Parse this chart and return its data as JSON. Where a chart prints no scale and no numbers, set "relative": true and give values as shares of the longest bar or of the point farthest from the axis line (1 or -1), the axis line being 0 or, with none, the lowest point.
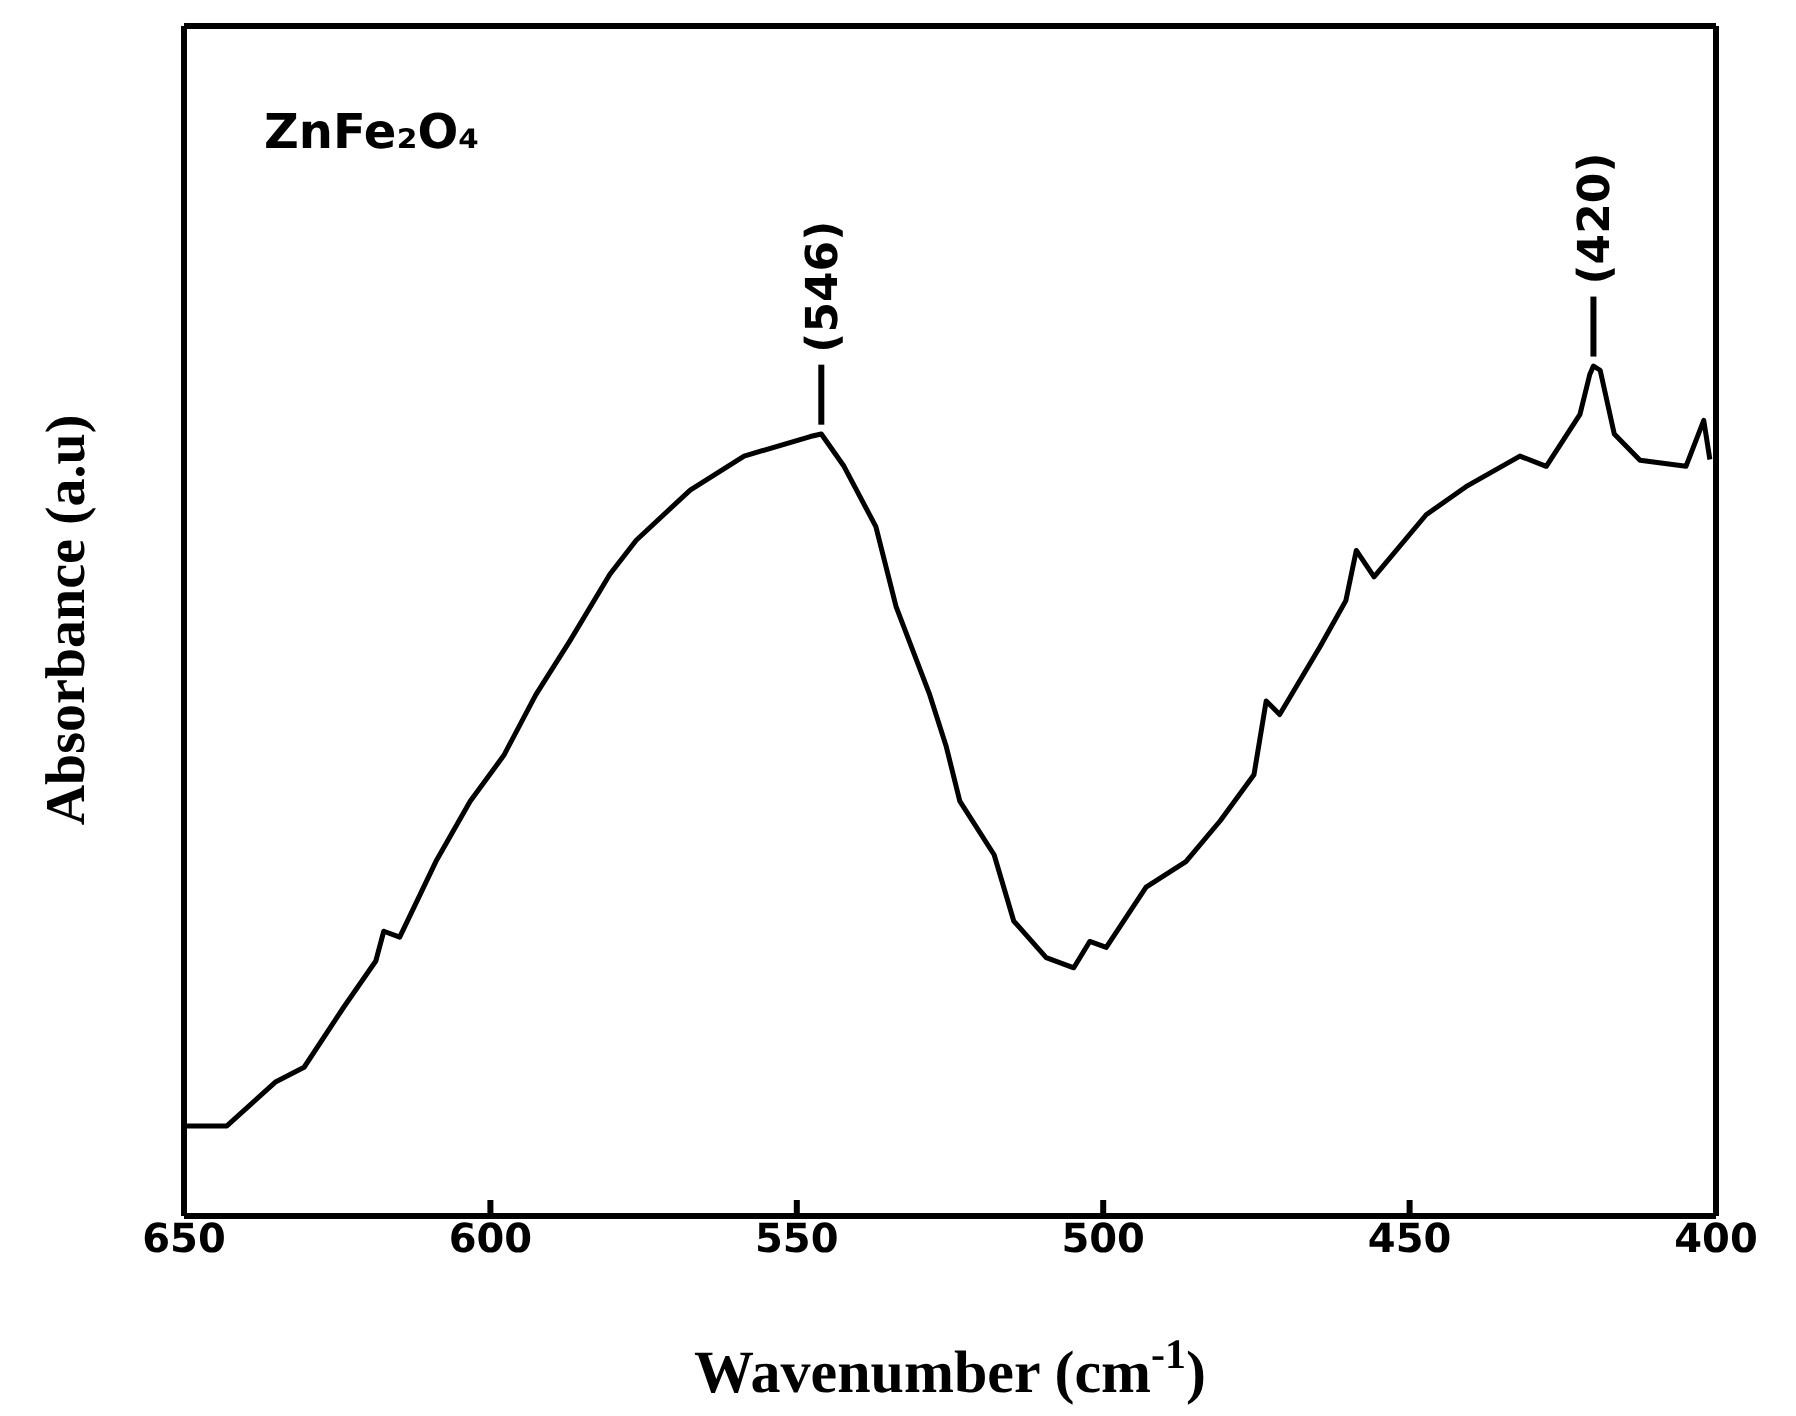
{
  "chart_data": {
    "type": "line",
    "relative": true,
    "xlabel": "Wavenumber (cm$^{-1}$)",
    "ylabel": "Absorbance (a.u)",
    "xlim": [
      650,
      400
    ],
    "xticks": [
      650,
      600,
      550,
      500,
      450,
      400
    ],
    "marker": "none",
    "line_style": "solid",
    "annotations": [
      "ZnFe₂O₄",
      {
        "text": "(546)",
        "x": 546,
        "y": 0.92
      },
      {
        "text": "(420)",
        "x": 420,
        "y": 1
      }
    ],
    "series": [
      {
        "color": "#000000",
        "x": [
          650,
          643,
          635,
          630.4,
          624,
          618.7,
          617.4,
          614.8,
          608.9,
          603.3,
          597.8,
          592.6,
          587,
          580.5,
          576.2,
          567.4,
          558.6,
          547.8,
          546,
          542.3,
          537.1,
          533.8,
          528.3,
          525.6,
          523.4,
          517.8,
          514.6,
          509.3,
          504.8,
          502.2,
          499.5,
          493,
          486.5,
          480.9,
          475.4,
          473.4,
          471.2,
          464.6,
          460.4,
          458.7,
          455.8,
          447.3,
          440.8,
          432,
          427.7,
          422.2,
          420.6,
          420,
          418.9,
          416.6,
          412.4,
          404.9,
          402,
          401
        ],
        "values": [
          0.106,
          0.106,
          0.158,
          0.175,
          0.245,
          0.3,
          0.335,
          0.328,
          0.417,
          0.488,
          0.542,
          0.613,
          0.677,
          0.755,
          0.795,
          0.854,
          0.894,
          0.917,
          0.92,
          0.882,
          0.811,
          0.717,
          0.613,
          0.552,
          0.488,
          0.425,
          0.347,
          0.304,
          0.292,
          0.323,
          0.316,
          0.387,
          0.417,
          0.465,
          0.519,
          0.606,
          0.59,
          0.67,
          0.724,
          0.783,
          0.752,
          0.825,
          0.858,
          0.894,
          0.882,
          0.943,
          0.99,
          1,
          0.995,
          0.92,
          0.889,
          0.882,
          0.936,
          0.89
        ]
      }
    ]
  }
}
